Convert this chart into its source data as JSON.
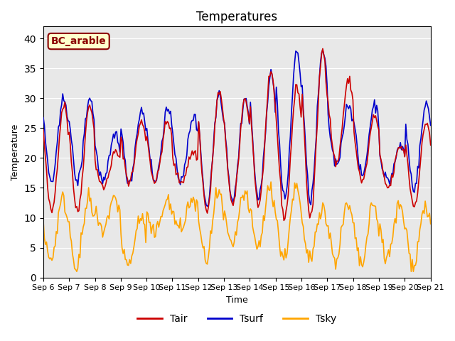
{
  "title": "Temperatures",
  "xlabel": "Time",
  "ylabel": "Temperature",
  "ylim": [
    0,
    42
  ],
  "yticks": [
    0,
    5,
    10,
    15,
    20,
    25,
    30,
    35,
    40
  ],
  "legend_label": "BC_arable",
  "legend_box_color": "#ffffcc",
  "legend_box_edge": "#8B0000",
  "line_Tair_color": "#cc0000",
  "line_Tsurf_color": "#0000cc",
  "line_Tsky_color": "#FFA500",
  "bg_color": "#e8e8e8",
  "line_width": 1.2,
  "xtick_labels": [
    "Sep 6",
    "Sep 7",
    "Sep 8",
    "Sep 9",
    "Sep 10",
    "Sep 11",
    "Sep 12",
    "Sep 13",
    "Sep 14",
    "Sep 15",
    "Sep 16",
    "Sep 17",
    "Sep 18",
    "Sep 19",
    "Sep 20",
    "Sep 21"
  ],
  "n_days": 15,
  "points_per_day": 24,
  "peak_Tair": [
    29,
    29,
    21,
    26,
    26,
    21,
    31,
    30,
    34,
    32,
    38,
    33,
    27,
    22,
    26
  ],
  "min_Tair": [
    11,
    11,
    15,
    16,
    16,
    16,
    11,
    12,
    12,
    10,
    10,
    19,
    16,
    15,
    12
  ],
  "peak_Tsurf": [
    30,
    30,
    24,
    28,
    28,
    27,
    31,
    30,
    34,
    38,
    38,
    29,
    29,
    22,
    29
  ],
  "min_Tsurf": [
    16,
    16,
    16,
    16,
    16,
    16,
    12,
    13,
    13,
    13,
    13,
    19,
    17,
    16,
    15
  ],
  "peak_Tsky": [
    13,
    13,
    13,
    10,
    13,
    13,
    14,
    14,
    15,
    15,
    12,
    12,
    12,
    12,
    12
  ],
  "min_Tsky": [
    3,
    2,
    8,
    2,
    7,
    8,
    3,
    5,
    5,
    3,
    3,
    3,
    2,
    3,
    2
  ]
}
